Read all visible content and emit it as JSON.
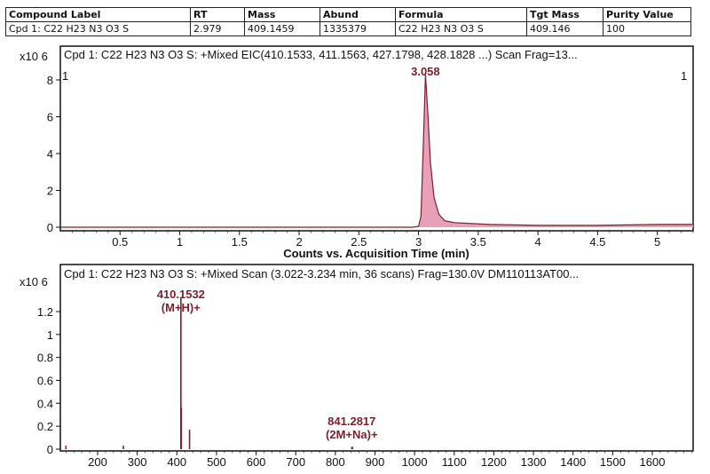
{
  "summary_table": {
    "headers": [
      "Compound Label",
      "RT",
      "Mass",
      "Abund",
      "Formula",
      "Tgt Mass",
      "Purity Value"
    ],
    "row": [
      "Cpd 1: C22 H23 N3 O3 S",
      "2.979",
      "409.1459",
      "1335379",
      "C22 H23 N3 O3 S",
      "409.146",
      "100"
    ]
  },
  "chart_data": [
    {
      "type": "line",
      "title": "Cpd 1: C22 H23 N3 O3 S: +Mixed EIC(410.1533, 411.1563, 427.1798, 428.1828 ...) Scan Frag=13...",
      "ylabel_exponent": "x10 6",
      "xlabel": "Counts vs. Acquisition Time (min)",
      "xlim": [
        0,
        5.3
      ],
      "ylim": [
        0,
        8.6
      ],
      "xticks": [
        "0.5",
        "1",
        "1.5",
        "2",
        "2.5",
        "3",
        "3.5",
        "4",
        "4.5",
        "5"
      ],
      "yticks": [
        "0",
        "2",
        "4",
        "6",
        "8"
      ],
      "corner_labels": [
        "1",
        "1"
      ],
      "peak_label": "3.058",
      "series": [
        {
          "x": [
            0,
            0.5,
            1.0,
            1.5,
            2.0,
            2.5,
            2.95,
            3.0,
            3.02,
            3.04,
            3.058,
            3.08,
            3.1,
            3.13,
            3.17,
            3.22,
            3.3,
            3.6,
            4.0,
            4.5,
            5.0,
            5.3
          ],
          "y": [
            0.0,
            0.0,
            0.0,
            0.0,
            0.0,
            0.0,
            0.0,
            0.05,
            0.6,
            4.5,
            8.3,
            6.0,
            3.5,
            1.6,
            0.7,
            0.35,
            0.25,
            0.15,
            0.1,
            0.1,
            0.15,
            0.15
          ]
        }
      ],
      "fill": "#e8a0b8"
    },
    {
      "type": "bar",
      "title": "Cpd 1: C22 H23 N3 O3 S: +Mixed Scan (3.022-3.234 min, 36 scans) Frag=130.0V DM110113AT00...",
      "ylabel_exponent": "x10 6",
      "xlim": [
        50,
        1720
      ],
      "ylim": [
        0,
        1.4
      ],
      "xticks": [
        "200",
        "300",
        "400",
        "500",
        "600",
        "700",
        "800",
        "900",
        "1000",
        "1100",
        "1200",
        "1300",
        "1400",
        "1500",
        "1600"
      ],
      "yticks": [
        "0",
        "0.2",
        "0.4",
        "0.6",
        "0.8",
        "1",
        "1.2"
      ],
      "peaks": [
        {
          "x": 120,
          "y": 0.03
        },
        {
          "x": 265,
          "y": 0.03
        },
        {
          "x": 410.1532,
          "y": 1.32
        },
        {
          "x": 411.15,
          "y": 0.36
        },
        {
          "x": 432,
          "y": 0.17
        },
        {
          "x": 841.2817,
          "y": 0.02
        },
        {
          "x": 843,
          "y": 0.02
        }
      ],
      "annotations": [
        {
          "x": 410.1532,
          "y": 1.32,
          "lines": [
            "410.1532",
            "(M+H)+"
          ]
        },
        {
          "x": 841.2817,
          "y": 0.02,
          "lines": [
            "841.2817",
            "(2M+Na)+"
          ]
        }
      ]
    }
  ]
}
